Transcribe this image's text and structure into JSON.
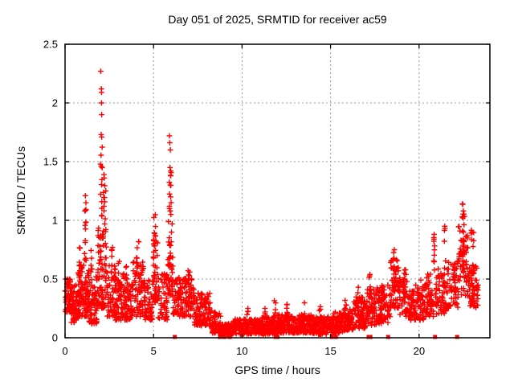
{
  "chart_data": {
    "type": "scatter",
    "title": "Day 051 of 2025, SRMTID for receiver ac59",
    "xlabel": "GPS time / hours",
    "ylabel": "SRMTID / TECUs",
    "xlim": [
      0,
      24
    ],
    "ylim": [
      0,
      2.5
    ],
    "xticks": [
      {
        "label": "0",
        "value": 0
      },
      {
        "label": "5",
        "value": 5
      },
      {
        "label": "10",
        "value": 10
      },
      {
        "label": "15",
        "value": 15
      },
      {
        "label": "20",
        "value": 20
      }
    ],
    "yticks": [
      {
        "label": "0",
        "value": 0
      },
      {
        "label": "0.5",
        "value": 0.5
      },
      {
        "label": "1",
        "value": 1
      },
      {
        "label": "1.5",
        "value": 1.5
      },
      {
        "label": "2",
        "value": 2
      },
      {
        "label": "2.5",
        "value": 2.5
      }
    ],
    "grid": true,
    "legend": "none",
    "marker": "plus",
    "marker_color": "#ff0000",
    "grid_color": "#9a9a9a",
    "axis_color": "#000000",
    "background_color": "#ffffff",
    "x_units": "hours",
    "x_data_range": [
      0,
      23.35
    ],
    "notable_points": [
      [
        0.03,
        0.5
      ],
      [
        1.15,
        1.21
      ],
      [
        1.18,
        1.15
      ],
      [
        1.12,
        1.08
      ],
      [
        2.02,
        2.27
      ],
      [
        2.05,
        2.12
      ],
      [
        2.06,
        2.09
      ],
      [
        2.06,
        2.0
      ],
      [
        2.07,
        1.9
      ],
      [
        2.04,
        1.73
      ],
      [
        2.07,
        1.71
      ],
      [
        2.04,
        1.46
      ],
      [
        2.1,
        1.45
      ],
      [
        2.2,
        1.39
      ],
      [
        2.22,
        1.36
      ],
      [
        2.3,
        1.25
      ],
      [
        2.2,
        1.12
      ],
      [
        5.9,
        1.72
      ],
      [
        5.92,
        1.66
      ],
      [
        5.95,
        1.6
      ],
      [
        5.93,
        1.45
      ],
      [
        5.97,
        1.38
      ],
      [
        5.95,
        1.3
      ],
      [
        5.9,
        1.12
      ],
      [
        5.98,
        1.05
      ],
      [
        18.6,
        0.75
      ],
      [
        20.85,
        0.88
      ],
      [
        21.45,
        0.95
      ],
      [
        22.45,
        1.14
      ],
      [
        22.5,
        1.08
      ],
      [
        22.48,
        1.02
      ],
      [
        23.0,
        0.9
      ]
    ],
    "bands_format": [
      "t_start",
      "t_end",
      "v_min",
      "v_max",
      "count"
    ],
    "bands": [
      [
        0.0,
        0.35,
        0.22,
        0.5,
        55
      ],
      [
        0.35,
        0.75,
        0.13,
        0.45,
        60
      ],
      [
        0.75,
        1.0,
        0.18,
        0.62,
        45
      ],
      [
        1.0,
        1.35,
        0.18,
        0.62,
        50
      ],
      [
        1.35,
        1.8,
        0.12,
        0.52,
        65
      ],
      [
        1.8,
        2.35,
        0.25,
        0.95,
        80
      ],
      [
        2.35,
        2.85,
        0.18,
        0.62,
        60
      ],
      [
        2.85,
        3.35,
        0.15,
        0.55,
        60
      ],
      [
        3.35,
        3.8,
        0.15,
        0.5,
        55
      ],
      [
        3.8,
        4.45,
        0.18,
        0.65,
        70
      ],
      [
        4.45,
        4.95,
        0.15,
        0.5,
        55
      ],
      [
        4.95,
        5.25,
        0.3,
        0.9,
        40
      ],
      [
        5.25,
        5.8,
        0.15,
        0.55,
        50
      ],
      [
        5.8,
        6.1,
        0.35,
        1.0,
        40
      ],
      [
        6.1,
        7.3,
        0.18,
        0.52,
        130
      ],
      [
        7.3,
        8.3,
        0.1,
        0.38,
        110
      ],
      [
        8.3,
        8.8,
        0.04,
        0.22,
        60
      ],
      [
        8.8,
        9.4,
        0.02,
        0.12,
        70
      ],
      [
        9.4,
        11.0,
        0.03,
        0.16,
        180
      ],
      [
        11.0,
        12.0,
        0.03,
        0.18,
        120
      ],
      [
        12.0,
        13.0,
        0.04,
        0.2,
        120
      ],
      [
        13.0,
        14.0,
        0.04,
        0.2,
        120
      ],
      [
        14.0,
        15.1,
        0.03,
        0.18,
        130
      ],
      [
        15.1,
        15.7,
        0.04,
        0.22,
        70
      ],
      [
        15.7,
        16.3,
        0.06,
        0.28,
        70
      ],
      [
        16.3,
        17.0,
        0.08,
        0.35,
        75
      ],
      [
        17.0,
        17.6,
        0.1,
        0.42,
        65
      ],
      [
        17.6,
        18.4,
        0.12,
        0.45,
        80
      ],
      [
        18.4,
        18.9,
        0.25,
        0.68,
        55
      ],
      [
        18.9,
        19.5,
        0.18,
        0.55,
        55
      ],
      [
        19.5,
        20.3,
        0.15,
        0.45,
        75
      ],
      [
        20.3,
        20.9,
        0.18,
        0.55,
        55
      ],
      [
        20.9,
        21.6,
        0.2,
        0.6,
        60
      ],
      [
        21.6,
        22.2,
        0.25,
        0.65,
        55
      ],
      [
        22.2,
        22.75,
        0.35,
        0.95,
        55
      ],
      [
        22.75,
        23.35,
        0.25,
        0.62,
        60
      ]
    ],
    "columns_format": [
      "t_center",
      "t_jitter",
      "v_min",
      "v_max",
      "count"
    ],
    "columns": [
      [
        0.82,
        0.05,
        0.5,
        0.85,
        8
      ],
      [
        1.15,
        0.06,
        0.55,
        1.2,
        12
      ],
      [
        1.5,
        0.04,
        0.5,
        0.8,
        6
      ],
      [
        2.05,
        0.05,
        0.95,
        1.75,
        10
      ],
      [
        2.22,
        0.05,
        0.9,
        1.4,
        8
      ],
      [
        2.65,
        0.05,
        0.45,
        0.78,
        8
      ],
      [
        3.05,
        0.05,
        0.4,
        0.65,
        7
      ],
      [
        3.45,
        0.05,
        0.4,
        0.62,
        6
      ],
      [
        4.1,
        0.08,
        0.45,
        0.85,
        10
      ],
      [
        5.05,
        0.06,
        0.5,
        1.05,
        12
      ],
      [
        5.95,
        0.07,
        0.6,
        1.55,
        18
      ],
      [
        7.0,
        0.05,
        0.35,
        0.6,
        8
      ],
      [
        10.3,
        0.05,
        0.12,
        0.28,
        5
      ],
      [
        11.3,
        0.05,
        0.12,
        0.3,
        5
      ],
      [
        11.85,
        0.05,
        0.15,
        0.33,
        5
      ],
      [
        12.55,
        0.04,
        0.15,
        0.33,
        6
      ],
      [
        13.5,
        0.04,
        0.15,
        0.35,
        6
      ],
      [
        14.4,
        0.04,
        0.12,
        0.3,
        5
      ],
      [
        15.85,
        0.04,
        0.15,
        0.38,
        6
      ],
      [
        16.55,
        0.05,
        0.2,
        0.45,
        8
      ],
      [
        17.2,
        0.05,
        0.25,
        0.55,
        8
      ],
      [
        18.0,
        0.05,
        0.25,
        0.5,
        7
      ],
      [
        18.62,
        0.06,
        0.4,
        0.75,
        12
      ],
      [
        19.2,
        0.05,
        0.3,
        0.62,
        8
      ],
      [
        20.05,
        0.05,
        0.25,
        0.5,
        7
      ],
      [
        20.85,
        0.05,
        0.4,
        0.88,
        9
      ],
      [
        21.45,
        0.06,
        0.35,
        0.95,
        10
      ],
      [
        22.5,
        0.07,
        0.5,
        1.14,
        16
      ],
      [
        23.0,
        0.1,
        0.3,
        0.92,
        14
      ]
    ],
    "zero_markers_hours": [
      6.2,
      8.75,
      9.0,
      9.3,
      11.9,
      12.0,
      15.07,
      15.3,
      17.15,
      17.25,
      18.25,
      20.9,
      22.15
    ],
    "seed": 20250051
  }
}
